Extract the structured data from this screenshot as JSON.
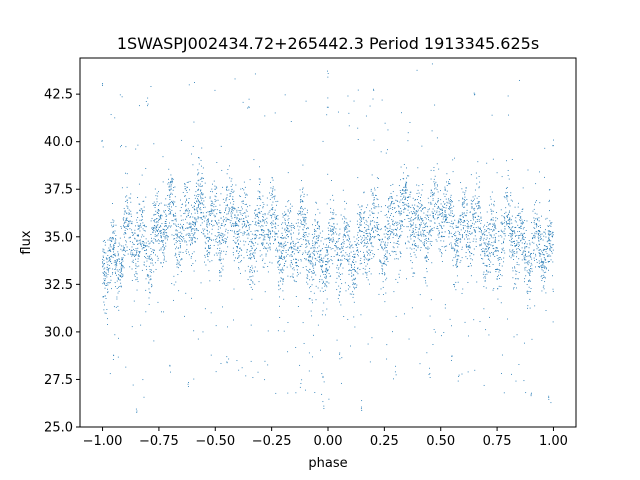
{
  "chart_data": {
    "type": "scatter",
    "title": "1SWASPJ002434.72+265442.3 Period 1913345.625s",
    "xlabel": "phase",
    "ylabel": "flux",
    "xlim": [
      -1.1,
      1.1
    ],
    "ylim": [
      25.0,
      44.4
    ],
    "x_ticks": [
      -1.0,
      -0.75,
      -0.5,
      -0.25,
      0.0,
      0.25,
      0.5,
      0.75,
      1.0
    ],
    "x_tick_labels": [
      "−1.00",
      "−0.75",
      "−0.50",
      "−0.25",
      "0.00",
      "0.25",
      "0.50",
      "0.75",
      "1.00"
    ],
    "y_ticks": [
      25.0,
      27.5,
      30.0,
      32.5,
      35.0,
      37.5,
      40.0,
      42.5
    ],
    "y_tick_labels": [
      "25.0",
      "27.5",
      "30.0",
      "32.5",
      "35.0",
      "37.5",
      "40.0",
      "42.5"
    ],
    "grid": false,
    "marker_color": "#1f77b4",
    "phase_folded": true,
    "profile": {
      "phase": [
        0.0,
        0.05,
        0.1,
        0.15,
        0.2,
        0.25,
        0.3,
        0.35,
        0.4,
        0.45,
        0.5,
        0.55,
        0.6,
        0.65,
        0.7,
        0.75,
        0.8,
        0.85,
        0.9,
        0.95,
        1.0
      ],
      "median_flux": [
        34.0,
        34.2,
        34.4,
        34.8,
        34.9,
        35.0,
        35.8,
        35.9,
        35.7,
        36.0,
        36.0,
        35.8,
        35.5,
        35.3,
        35.2,
        35.0,
        35.1,
        34.8,
        34.6,
        34.2,
        34.0
      ],
      "scatter": 1.3
    },
    "outliers": [
      {
        "x": 0.0,
        "y": 43.5
      },
      {
        "x": 0.0,
        "y": 42.0
      },
      {
        "x": -1.0,
        "y": 43.0
      },
      {
        "x": -1.0,
        "y": 40.0
      },
      {
        "x": 1.0,
        "y": 40.0
      },
      {
        "x": -0.02,
        "y": 26.2
      },
      {
        "x": -0.02,
        "y": 27.5
      },
      {
        "x": 0.98,
        "y": 26.5
      },
      {
        "x": -0.95,
        "y": 28.5
      },
      {
        "x": 0.05,
        "y": 28.8
      },
      {
        "x": -0.7,
        "y": 28.0
      },
      {
        "x": 0.3,
        "y": 28.0
      },
      {
        "x": -0.62,
        "y": 27.2
      },
      {
        "x": 0.58,
        "y": 27.5
      },
      {
        "x": -0.12,
        "y": 27.3
      },
      {
        "x": 0.9,
        "y": 26.7
      },
      {
        "x": -0.45,
        "y": 28.6
      },
      {
        "x": 0.55,
        "y": 28.5
      },
      {
        "x": -0.35,
        "y": 42.0
      },
      {
        "x": 0.2,
        "y": 42.5
      },
      {
        "x": 0.65,
        "y": 42.5
      },
      {
        "x": -0.8,
        "y": 42.0
      },
      {
        "x": 0.45,
        "y": 28.0
      },
      {
        "x": -0.85,
        "y": 26.0
      },
      {
        "x": 0.15,
        "y": 26.0
      }
    ]
  }
}
